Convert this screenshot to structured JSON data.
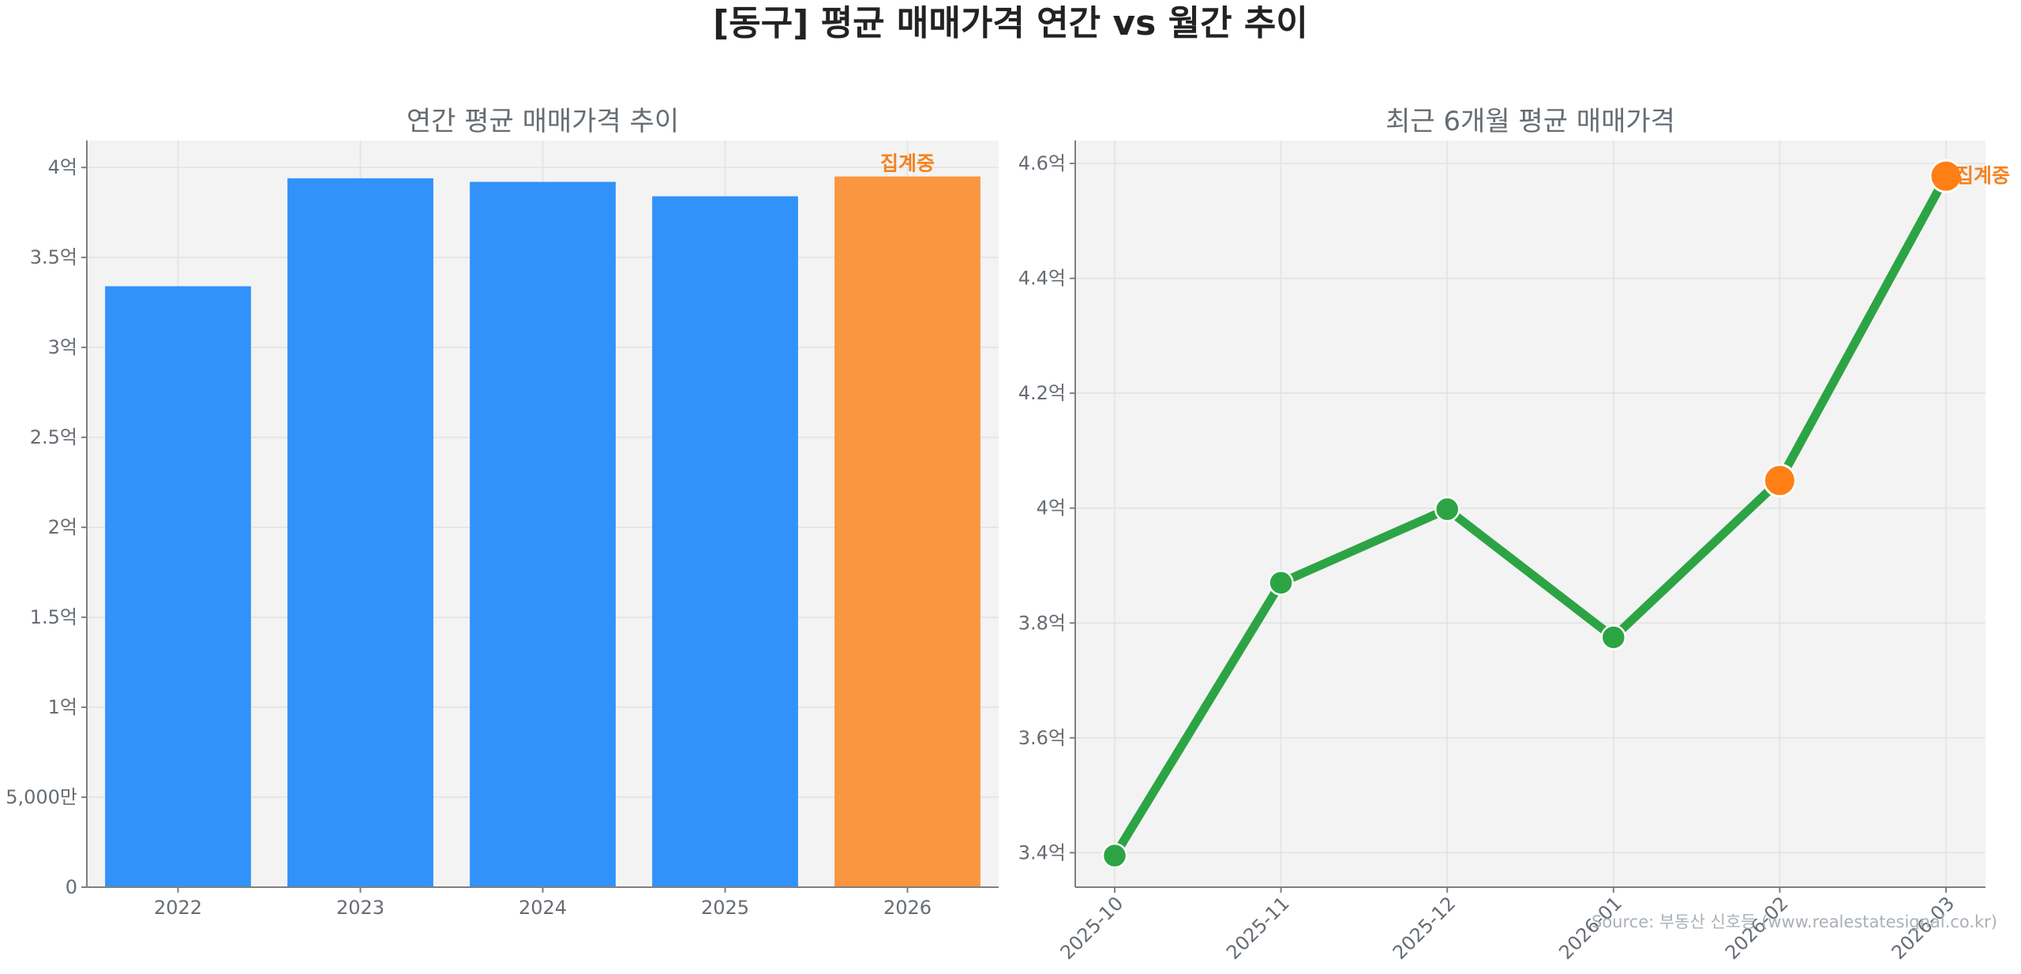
{
  "title": "[동구] 평균 매매가격 연간 vs 월간 추이",
  "source": "Source: 부동산 신호등 (www.realestatesignal.co.kr)",
  "colors": {
    "bar_default": "#3192fa",
    "bar_highlight": "#f9963f",
    "line": "#2ca444",
    "point_highlight": "#fd7f15",
    "annotation": "#f5821f",
    "plot_bg": "#f3f3f3"
  },
  "chart_data": [
    {
      "type": "bar",
      "title": "연간 평균 매매가격 추이",
      "categories": [
        "2022",
        "2023",
        "2024",
        "2025",
        "2026"
      ],
      "values": [
        33400,
        39400,
        39200,
        38400,
        39500
      ],
      "unit": "만원",
      "highlight_index": 4,
      "annotation": "집계중",
      "ylim": [
        0,
        41500
      ],
      "yticks": [
        0,
        5000,
        10000,
        15000,
        20000,
        25000,
        30000,
        35000,
        40000
      ],
      "ytick_labels": [
        "0",
        "5,000만",
        "1억",
        "1.5억",
        "2억",
        "2.5억",
        "3억",
        "3.5억",
        "4억"
      ],
      "grid": true
    },
    {
      "type": "line",
      "title": "최근 6개월 평균 매매가격",
      "categories": [
        "2025-10",
        "2025-11",
        "2025-12",
        "2026-01",
        "2026-02",
        "2026-03"
      ],
      "values": [
        33950,
        38700,
        39980,
        37750,
        40480,
        45780
      ],
      "unit": "만원",
      "highlight_indices": [
        4,
        5
      ],
      "annotation": "집계중",
      "annotation_index": 5,
      "ylim": [
        33400,
        46400
      ],
      "yticks": [
        34000,
        36000,
        38000,
        40000,
        42000,
        44000,
        46000
      ],
      "ytick_labels": [
        "3.4억",
        "3.6억",
        "3.8억",
        "4억",
        "4.2억",
        "4.4억",
        "4.6억"
      ],
      "grid": true
    }
  ]
}
